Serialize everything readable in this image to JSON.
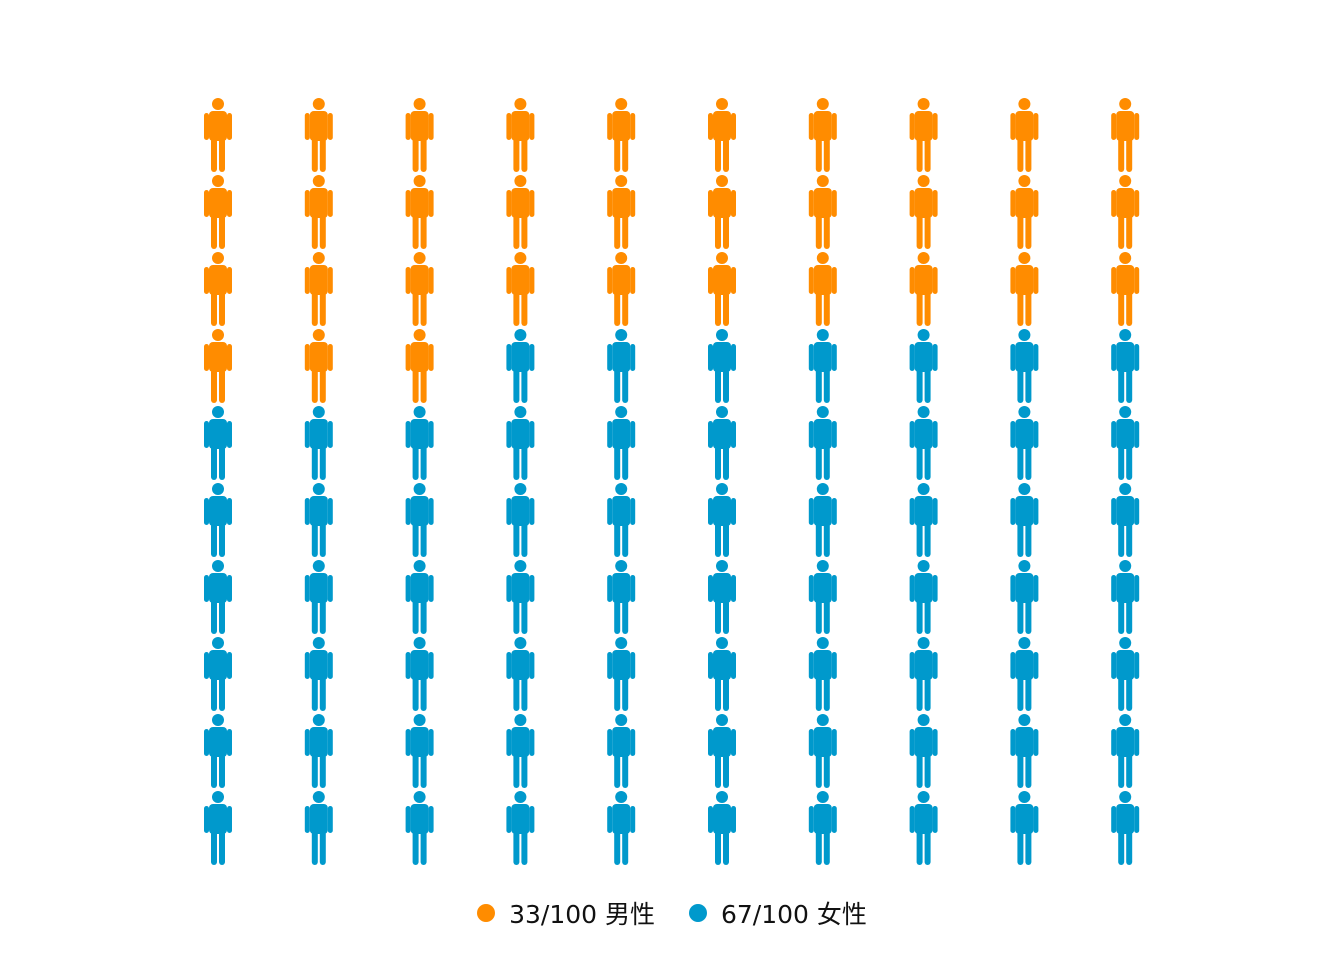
{
  "chart_data": {
    "type": "waffle-pictogram",
    "icon": "person-icon",
    "rows": 10,
    "columns": 10,
    "total": 100,
    "fill_order": "row-major",
    "series": [
      {
        "count": 33,
        "color": "#FF8C00",
        "legend_label": "33/100 男性"
      },
      {
        "count": 67,
        "color": "#0099CC",
        "legend_label": "67/100 女性"
      }
    ],
    "legend_position": "bottom",
    "grid": false
  }
}
